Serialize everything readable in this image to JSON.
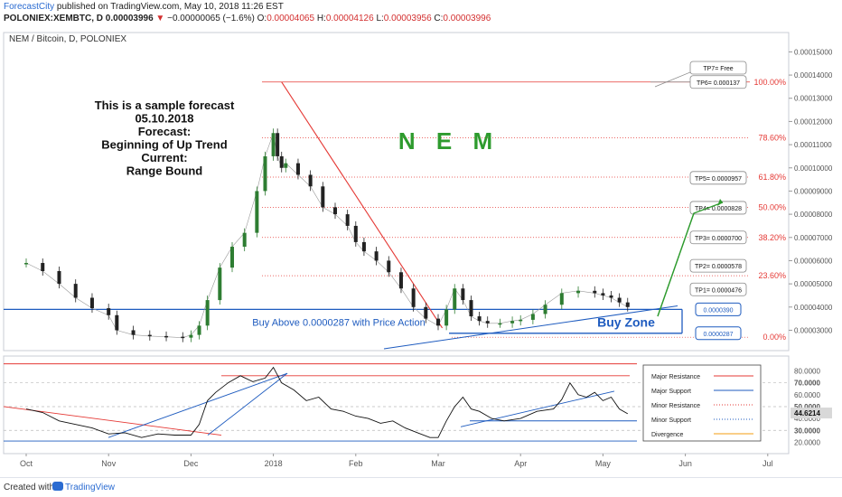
{
  "header": {
    "brand": "ForecastCity",
    "published": "published on TradingView.com, May 10, 2018 11:26 EST",
    "symbol": "POLONIEX:XEMBTC, D",
    "last": "0.00003996",
    "arrow": "▼",
    "change": "−0.00000065 (−1.6%)",
    "ohlc": [
      {
        "k": "O:",
        "v": "0.00004065"
      },
      {
        "k": "H:",
        "v": "0.00004126"
      },
      {
        "k": "L:",
        "v": "0.00003956"
      },
      {
        "k": "C:",
        "v": "0.00003996"
      }
    ]
  },
  "chart_data": {
    "type": "line",
    "title": "NEM / Bitcoin, D, POLONIEX",
    "watermark": "N E M",
    "x_tick_labels": [
      "Oct",
      "Nov",
      "Dec",
      "2018",
      "Feb",
      "Mar",
      "Apr",
      "May",
      "Jun",
      "Jul"
    ],
    "y_tick_labels": [
      "0.00015000",
      "0.00014000",
      "0.00013000",
      "0.00012000",
      "0.00011000",
      "0.00010000",
      "0.00009000",
      "0.00008000",
      "0.00007000",
      "0.00006000",
      "0.00005000",
      "0.00004000",
      "0.00003000"
    ],
    "ylim": [
      2.2e-05,
      0.000156
    ],
    "x_month_index": [
      0,
      1,
      2,
      3,
      4,
      5,
      6,
      7,
      8,
      9
    ],
    "price_series": {
      "x": [
        0,
        0.2,
        0.4,
        0.6,
        0.8,
        1.0,
        1.1,
        1.3,
        1.5,
        1.7,
        1.9,
        2.0,
        2.1,
        2.2,
        2.35,
        2.5,
        2.65,
        2.8,
        2.9,
        3.0,
        3.05,
        3.1,
        3.15,
        3.3,
        3.45,
        3.6,
        3.75,
        3.9,
        4.0,
        4.1,
        4.25,
        4.4,
        4.55,
        4.7,
        4.85,
        5.0,
        5.1,
        5.2,
        5.3,
        5.4,
        5.5,
        5.6,
        5.75,
        5.9,
        6.0,
        6.15,
        6.3,
        6.5,
        6.7,
        6.9,
        7.0,
        7.1,
        7.2,
        7.3
      ],
      "y": [
        5.9e-05,
        5.55e-05,
        5e-05,
        4.4e-05,
        3.95e-05,
        3.65e-05,
        3e-05,
        2.8e-05,
        2.75e-05,
        2.72e-05,
        2.68e-05,
        2.8e-05,
        3.2e-05,
        4.3e-05,
        5.7e-05,
        6.6e-05,
        7.2e-05,
        9e-05,
        0.000105,
        0.000115,
        0.000105,
        0.0001,
        0.000102,
        9.7e-05,
        9.2e-05,
        8.3e-05,
        8e-05,
        7.5e-05,
        6.8e-05,
        6.4e-05,
        6e-05,
        5.5e-05,
        4.8e-05,
        4e-05,
        3.5e-05,
        3.2e-05,
        3.9e-05,
        4.8e-05,
        4.3e-05,
        3.6e-05,
        3.4e-05,
        3.3e-05,
        3.3e-05,
        3.4e-05,
        3.45e-05,
        3.7e-05,
        4.1e-05,
        4.6e-05,
        4.7e-05,
        4.6e-05,
        4.5e-05,
        4.4e-05,
        4.2e-05,
        4e-05
      ]
    },
    "fib_levels": [
      {
        "label": "100.00%",
        "value": 0.000137
      },
      {
        "label": "78.60%",
        "value": 0.000113
      },
      {
        "label": "61.80%",
        "value": 9.6e-05
      },
      {
        "label": "50.00%",
        "value": 8.3e-05
      },
      {
        "label": "38.20%",
        "value": 7e-05
      },
      {
        "label": "23.60%",
        "value": 5.35e-05
      },
      {
        "label": "0.00%",
        "value": 2.7e-05
      }
    ],
    "targets": [
      {
        "label": "TP7= Free",
        "value": 0.000147
      },
      {
        "label": "TP6= 0.000137",
        "value": 0.000137
      },
      {
        "label": "TP5= 0.0000957",
        "value": 9.57e-05
      },
      {
        "label": "TP4= 0.0000828",
        "value": 8.28e-05
      },
      {
        "label": "TP3= 0.0000700",
        "value": 7e-05
      },
      {
        "label": "TP2= 0.0000578",
        "value": 5.78e-05
      },
      {
        "label": "TP1= 0.0000476",
        "value": 4.76e-05
      }
    ],
    "zone_labels": [
      {
        "label": "0.0000390",
        "value": 3.9e-05
      },
      {
        "label": "0.0000287",
        "value": 2.87e-05
      }
    ],
    "annotations": {
      "forecast_lines": [
        "This is a sample forecast",
        "05.10.2018",
        "Forecast:",
        "Beginning of Up Trend",
        "Current:",
        "Range Bound"
      ],
      "buy_text": "Buy Above 0.0000287 with Price Action",
      "buy_zone": "Buy Zone"
    },
    "oscillator": {
      "y_tick_labels": [
        "80.0000",
        "70.0000",
        "60.0000",
        "50.0000",
        "40.0000",
        "30.0000",
        "20.0000"
      ],
      "ylim": [
        15,
        88
      ],
      "x": [
        0,
        0.2,
        0.4,
        0.6,
        0.8,
        1.0,
        1.2,
        1.4,
        1.6,
        1.8,
        2.0,
        2.1,
        2.2,
        2.3,
        2.45,
        2.6,
        2.75,
        2.9,
        3.0,
        3.1,
        3.25,
        3.4,
        3.55,
        3.7,
        3.85,
        4.0,
        4.15,
        4.3,
        4.45,
        4.6,
        4.75,
        4.9,
        5.0,
        5.1,
        5.2,
        5.3,
        5.4,
        5.5,
        5.65,
        5.8,
        6.0,
        6.2,
        6.4,
        6.5,
        6.6,
        6.7,
        6.8,
        6.9,
        7.0,
        7.1,
        7.2,
        7.3
      ],
      "y": [
        48,
        45,
        38,
        35,
        32,
        27,
        28,
        24,
        27,
        26,
        26,
        35,
        55,
        62,
        70,
        76,
        71,
        74,
        83,
        70,
        64,
        55,
        58,
        48,
        46,
        42,
        40,
        36,
        38,
        32,
        28,
        24,
        24,
        38,
        50,
        58,
        48,
        46,
        40,
        38,
        40,
        46,
        48,
        56,
        70,
        60,
        58,
        62,
        55,
        58,
        48,
        44
      ],
      "levels": [
        {
          "value": 86,
          "kind": "resistance"
        },
        {
          "value": 76,
          "kind": "resistance"
        },
        {
          "value": 38,
          "kind": "support"
        },
        {
          "value": 21,
          "kind": "support"
        }
      ],
      "current": "44.6214",
      "legend": [
        {
          "label": "Major Resistance",
          "color": "#e53935",
          "style": "solid"
        },
        {
          "label": "Major Support",
          "color": "#1e5bbf",
          "style": "solid"
        },
        {
          "label": "Minor Resistance",
          "color": "#e53935",
          "style": "dotted"
        },
        {
          "label": "Minor Support",
          "color": "#1e5bbf",
          "style": "dotted"
        },
        {
          "label": "Divergence",
          "color": "#f39c12",
          "style": "solid"
        }
      ]
    }
  },
  "footer": {
    "label": "Created with",
    "brand": "TradingView"
  },
  "colors": {
    "up": "#2e7d32",
    "down": "#222222",
    "resistance": "#e53935",
    "support": "#1e5bbf",
    "watermark": "#2e9b2e",
    "target_arrow": "#2e9b2e"
  }
}
